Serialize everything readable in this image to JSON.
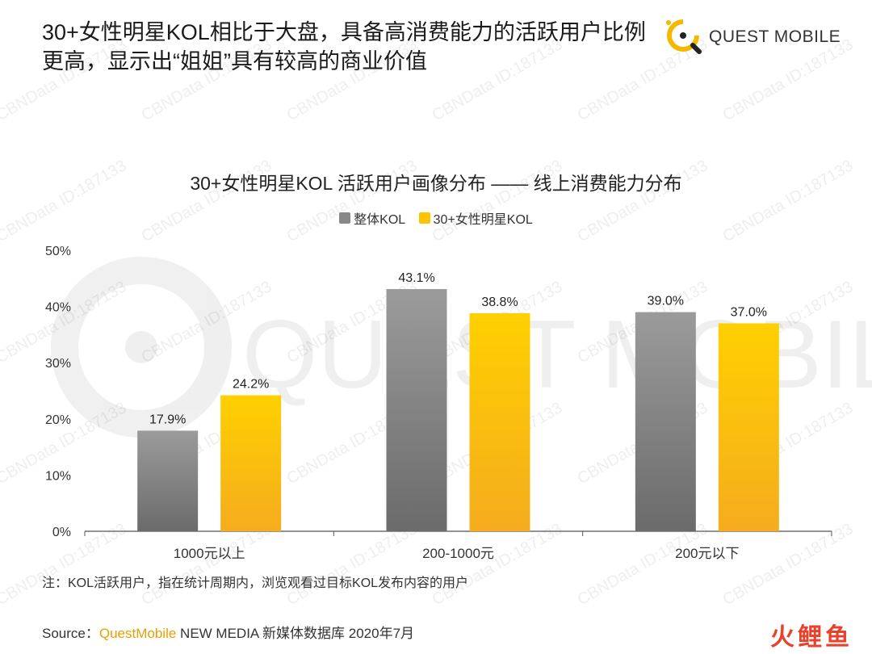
{
  "headline": "30+女性明星KOL相比于大盘，具备高消费能力的活跃用户比例更高，显示出“姐姐”具有较高的商业价值",
  "logo": {
    "text": "QUEST MOBILE",
    "color": "#f5b800"
  },
  "watermark": {
    "text": "CBNData ID:187133",
    "big_text": "QUEST MOBILE"
  },
  "colors": {
    "gray_top": "#9b9b9b",
    "gray_bottom": "#6b6b6b",
    "yellow_top": "#ffd000",
    "yellow_bottom": "#f5ac1e",
    "axis": "#555555"
  },
  "chart_data": {
    "type": "bar",
    "title": "30+女性明星KOL 活跃用户画像分布 —— 线上消费能力分布",
    "categories": [
      "1000元以上",
      "200-1000元",
      "200元以下"
    ],
    "series": [
      {
        "name": "整体KOL",
        "values": [
          17.9,
          43.1,
          39.0
        ],
        "labels": [
          "17.9%",
          "43.1%",
          "39.0%"
        ]
      },
      {
        "name": "30+女性明星KOL",
        "values": [
          24.2,
          38.8,
          37.0
        ],
        "labels": [
          "24.2%",
          "38.8%",
          "37.0%"
        ]
      }
    ],
    "ylim": [
      0,
      50
    ],
    "yticks": [
      "0%",
      "10%",
      "20%",
      "30%",
      "40%",
      "50%"
    ],
    "legend_position": "top-center",
    "grid": false
  },
  "note": "注：KOL活跃用户，指在统计周期内，浏览观看过目标KOL发布内容的用户",
  "source": {
    "prefix": "Source：",
    "brand": "QuestMobile",
    "rest": " NEW MEDIA 新媒体数据库 2020年7月"
  },
  "corner_logo": "火鲤鱼"
}
